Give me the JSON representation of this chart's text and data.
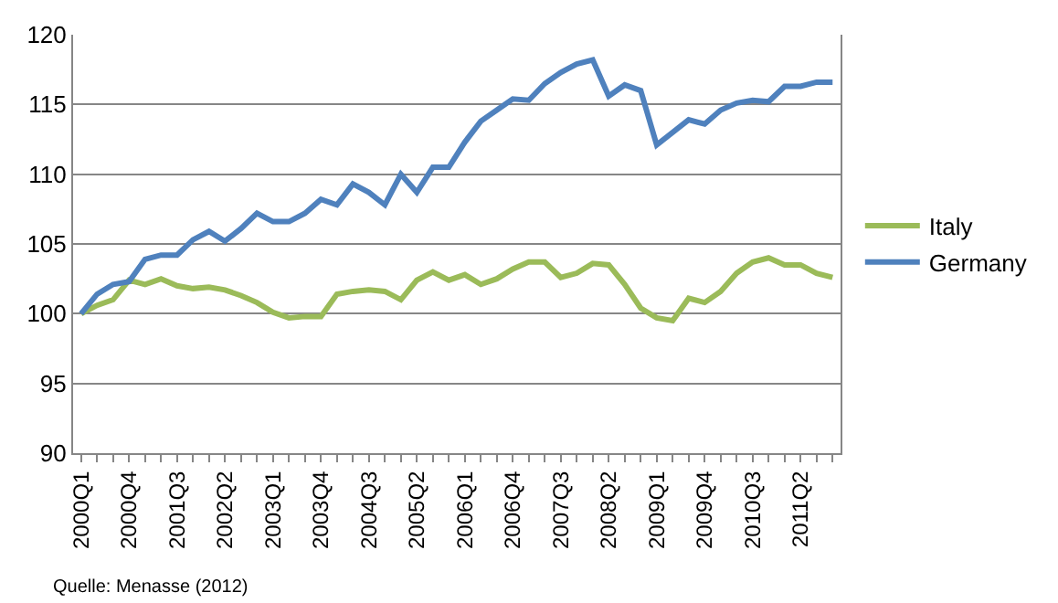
{
  "chart_data": {
    "type": "line",
    "categories": [
      "2000Q1",
      null,
      null,
      "2000Q4",
      null,
      null,
      "2001Q3",
      null,
      null,
      "2002Q2",
      null,
      null,
      "2003Q1",
      null,
      null,
      "2003Q4",
      null,
      null,
      "2004Q3",
      null,
      null,
      "2005Q2",
      null,
      null,
      "2006Q1",
      null,
      null,
      "2006Q4",
      null,
      null,
      "2007Q3",
      null,
      null,
      "2008Q2",
      null,
      null,
      "2009Q1",
      null,
      null,
      "2009Q4",
      null,
      null,
      "2010Q3",
      null,
      null,
      "2011Q2",
      null,
      null
    ],
    "series": [
      {
        "name": "Italy",
        "color": "#9bbb59",
        "values": [
          100,
          100.6,
          101.0,
          102.4,
          102.1,
          102.5,
          102.0,
          101.8,
          101.9,
          101.7,
          101.3,
          100.8,
          100.1,
          99.7,
          99.8,
          99.8,
          101.4,
          101.6,
          101.7,
          101.6,
          101.0,
          102.4,
          103.0,
          102.4,
          102.8,
          102.1,
          102.5,
          103.2,
          103.7,
          103.7,
          102.6,
          102.9,
          103.6,
          103.5,
          102.1,
          100.4,
          99.7,
          99.5,
          101.1,
          100.8,
          101.6,
          102.9,
          103.7,
          104.0,
          103.5,
          103.5,
          102.9,
          102.6
        ]
      },
      {
        "name": "Germany",
        "color": "#4f81bd",
        "values": [
          100,
          101.4,
          102.1,
          102.3,
          103.9,
          104.2,
          104.2,
          105.3,
          105.9,
          105.2,
          106.1,
          107.2,
          106.6,
          106.6,
          107.2,
          108.2,
          107.8,
          109.3,
          108.7,
          107.8,
          110.0,
          108.7,
          110.5,
          110.5,
          112.3,
          113.8,
          114.6,
          115.4,
          115.3,
          116.5,
          117.3,
          117.9,
          118.2,
          115.6,
          116.4,
          116.0,
          112.1,
          113.0,
          113.9,
          113.6,
          114.6,
          115.1,
          115.3,
          115.2,
          116.3,
          116.3,
          116.6,
          116.6
        ]
      }
    ],
    "ylim": [
      90,
      120
    ],
    "yticks": [
      90,
      95,
      100,
      105,
      110,
      115,
      120
    ],
    "grid": "y",
    "legend": "right",
    "marker": "none",
    "line_style": "solid",
    "annotations": [
      "Quelle: Menasse (2012)"
    ]
  }
}
